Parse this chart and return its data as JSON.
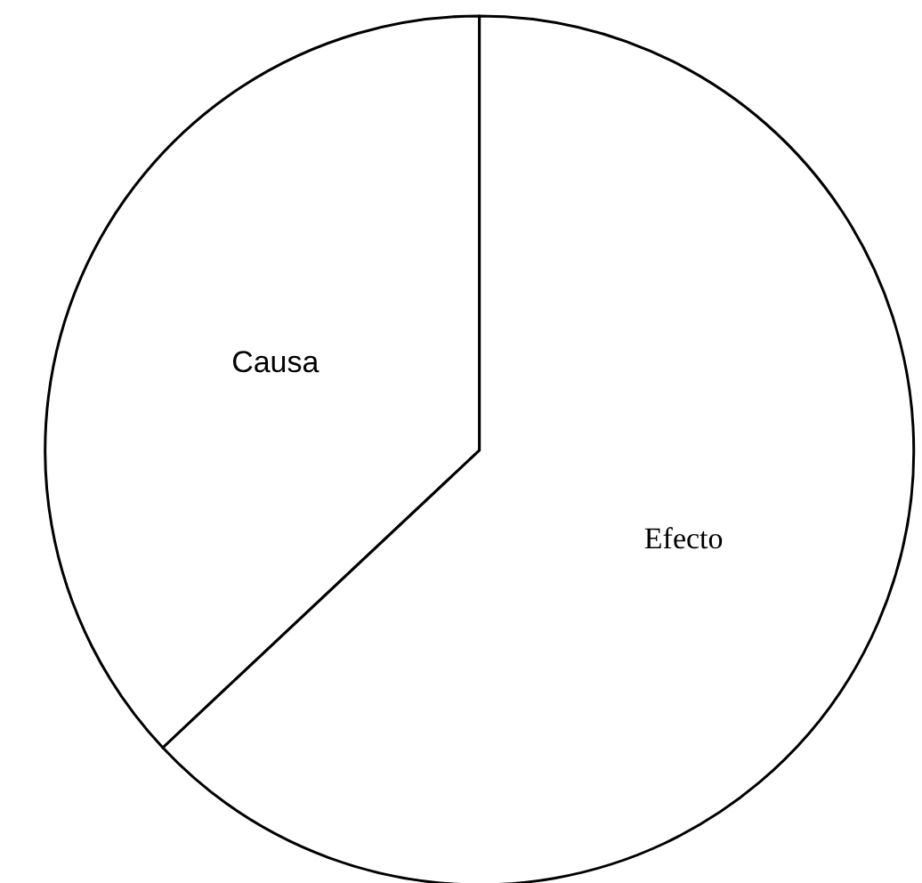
{
  "chart_data": {
    "type": "pie",
    "categories": [
      "Causa",
      "Efecto"
    ],
    "values": [
      37,
      63
    ],
    "colors": [
      "#ffffff",
      "#ffffff"
    ]
  }
}
